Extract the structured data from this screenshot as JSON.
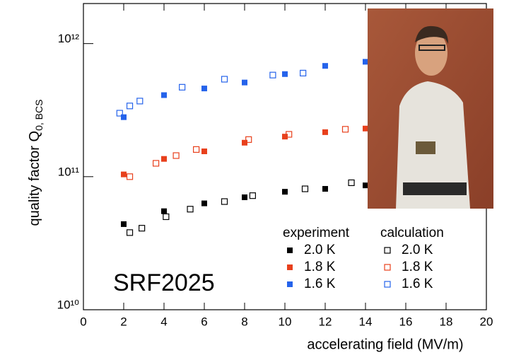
{
  "chart_data": {
    "type": "scatter",
    "log_y": true,
    "xlabel": "accelerating field (MV/m)",
    "ylabel": "quality factor Q",
    "ylabel_sub": "0, BCS",
    "annotation": "SRF2025",
    "legend_headers": [
      "experiment",
      "calculation"
    ],
    "xlim": [
      0,
      20
    ],
    "xticks": [
      0,
      2,
      4,
      6,
      8,
      10,
      12,
      14,
      16,
      18,
      20
    ],
    "ylim": [
      10000000000,
      2000000000000
    ],
    "yticks": [
      {
        "value": 10000000000,
        "label": "10¹⁰"
      },
      {
        "value": 100000000000,
        "label": "10¹¹"
      },
      {
        "value": 1000000000000,
        "label": "10¹²"
      }
    ],
    "series": [
      {
        "name": "2.0 K",
        "color": "#000000",
        "marker": "filled",
        "x": [
          2,
          4,
          6,
          8,
          10,
          12,
          14
        ],
        "values": [
          44000000000,
          55000000000,
          63000000000,
          70000000000,
          77000000000,
          81000000000,
          86000000000
        ]
      },
      {
        "name": "1.8 K",
        "color": "#e8401c",
        "marker": "filled",
        "x": [
          2,
          4,
          6,
          8,
          10,
          12,
          14
        ],
        "values": [
          104000000000,
          136000000000,
          155000000000,
          180000000000,
          200000000000,
          216000000000,
          230000000000
        ]
      },
      {
        "name": "1.6 K",
        "color": "#2563eb",
        "marker": "filled",
        "x": [
          2,
          4,
          6,
          8,
          10,
          12,
          14
        ],
        "values": [
          280000000000,
          410000000000,
          460000000000,
          510000000000,
          590000000000,
          680000000000,
          730000000000
        ]
      },
      {
        "name": "2.0 K",
        "color": "#000000",
        "marker": "open",
        "x": [
          2.3,
          2.9,
          4.1,
          5.3,
          7,
          8.4,
          11,
          13.3
        ],
        "values": [
          38000000000,
          41000000000,
          50000000000,
          57000000000,
          65000000000,
          72000000000,
          81000000000,
          90000000000
        ]
      },
      {
        "name": "1.8 K",
        "color": "#e8401c",
        "marker": "open",
        "x": [
          2.3,
          3.6,
          4.6,
          5.6,
          8.2,
          10.2,
          13
        ],
        "values": [
          100000000000,
          126000000000,
          144000000000,
          160000000000,
          190000000000,
          208000000000,
          227000000000
        ]
      },
      {
        "name": "1.6 K",
        "color": "#2563eb",
        "marker": "open",
        "x": [
          1.8,
          2.3,
          2.8,
          4.9,
          7,
          9.4,
          10.9
        ],
        "values": [
          300000000000,
          340000000000,
          370000000000,
          470000000000,
          540000000000,
          580000000000,
          600000000000
        ]
      }
    ]
  }
}
